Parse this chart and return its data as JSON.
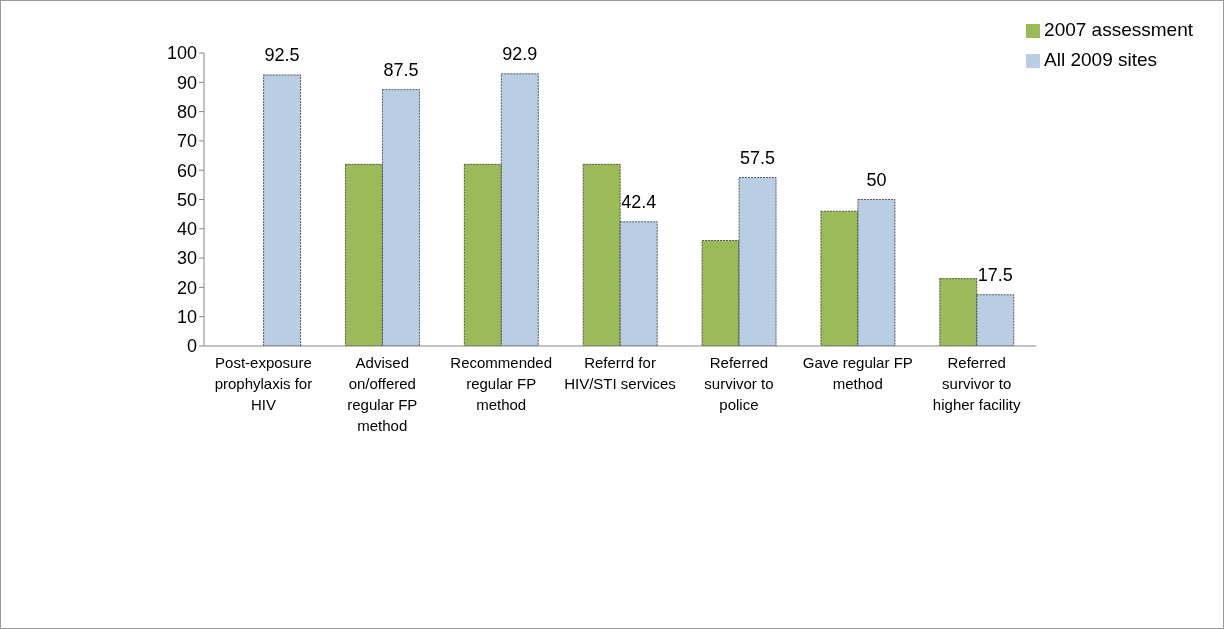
{
  "chart_data": {
    "type": "bar",
    "categories": [
      "Post-exposure prophylaxis for HIV",
      "Advised on/offered regular FP method",
      "Recommended regular FP method",
      "Referrd for HIV/STI services",
      "Referred survivor to police",
      "Gave regular FP method",
      "Referred survivor to higher facility"
    ],
    "series": [
      {
        "name": "2007 assessment",
        "color": "#9bbb59",
        "values": [
          null,
          62,
          62,
          62,
          36,
          46,
          23
        ]
      },
      {
        "name": "All 2009 sites",
        "color": "#b9cde5",
        "values": [
          92.5,
          87.5,
          92.9,
          42.4,
          57.5,
          50,
          17.5
        ],
        "value_labels": [
          "92.5",
          "87.5",
          "92.9",
          "42.4",
          "57.5",
          "50",
          "17.5"
        ]
      }
    ],
    "ylim": [
      0,
      100
    ],
    "yticks": [
      0,
      10,
      20,
      30,
      40,
      50,
      60,
      70,
      80,
      90,
      100
    ],
    "grid": false,
    "legend": "top right"
  }
}
